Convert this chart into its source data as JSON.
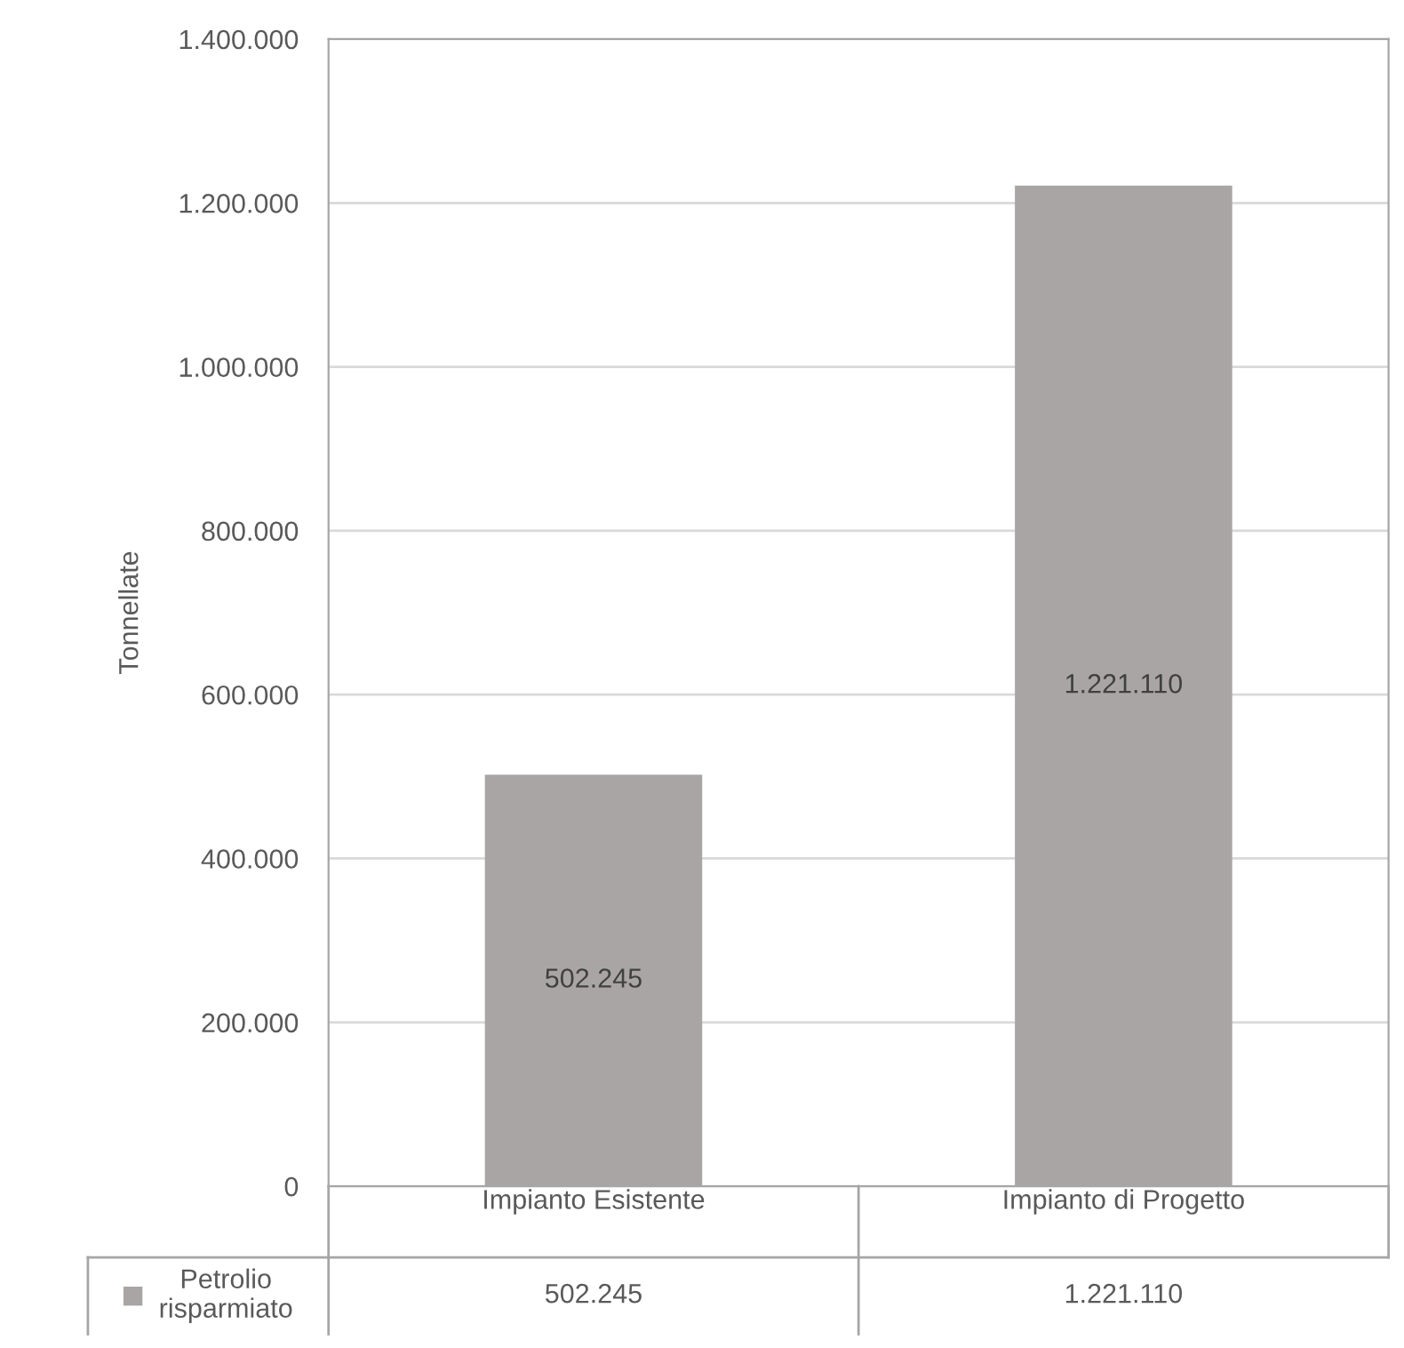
{
  "chart_data": {
    "type": "bar",
    "ylabel": "Tonnellate",
    "categories": [
      "Impianto Esistente",
      "Impianto di Progetto"
    ],
    "series": [
      {
        "name": "Petrolio risparmiato",
        "color": "#a9a5a5",
        "values": [
          502245,
          1221110
        ],
        "value_labels": [
          "502.245",
          "1.221.110"
        ]
      }
    ],
    "ylim": [
      0,
      1400000
    ],
    "yticks": [
      0,
      {
        "value": 200000,
        "label": "200.000"
      },
      {
        "value": 400000,
        "label": "400.000"
      },
      {
        "value": 600000,
        "label": "600.000"
      },
      {
        "value": 800000,
        "label": "800.000"
      },
      {
        "value": 1000000,
        "label": "1.000.000"
      },
      {
        "value": 1200000,
        "label": "1.200.000"
      },
      {
        "value": 1400000,
        "label": "1.400.000"
      }
    ],
    "grid": "y",
    "legend": "bottom"
  }
}
